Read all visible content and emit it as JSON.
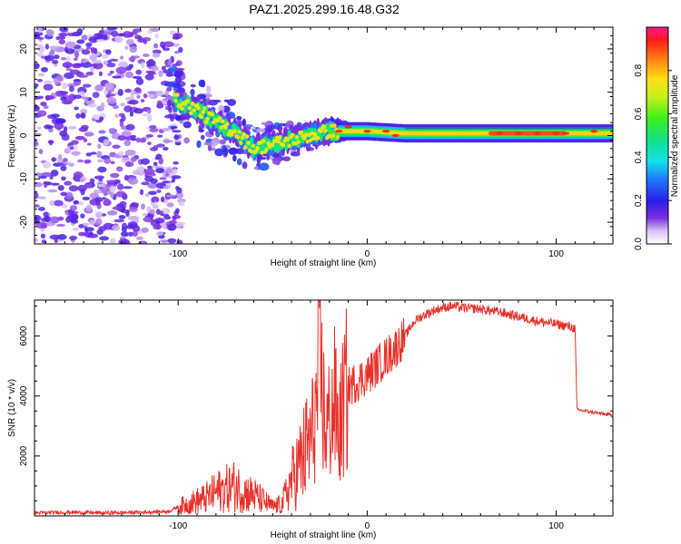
{
  "title": "PAZ1.2025.299.16.48.G32",
  "chart_data": [
    {
      "type": "heatmap",
      "panel": "spectrogram",
      "xlabel": "Height of straight line (km)",
      "ylabel": "Frequency (Hz)",
      "xlim": [
        -176,
        130
      ],
      "ylim": [
        -25,
        25
      ],
      "xticks": [
        -100,
        0,
        100
      ],
      "yticks": [
        -20,
        -10,
        0,
        10,
        20
      ],
      "colorbar": {
        "label": "Normalized spectral amplitude",
        "range": [
          0,
          1
        ],
        "ticks": [
          "0.0",
          "0.2",
          "0.4",
          "0.6",
          "0.8"
        ]
      },
      "ridge": [
        {
          "x": -100,
          "f": 8
        },
        {
          "x": -90,
          "f": 6
        },
        {
          "x": -80,
          "f": 3
        },
        {
          "x": -70,
          "f": 1
        },
        {
          "x": -60,
          "f": -3
        },
        {
          "x": -50,
          "f": -2
        },
        {
          "x": -40,
          "f": -1
        },
        {
          "x": -30,
          "f": 0
        },
        {
          "x": -20,
          "f": 1
        },
        {
          "x": -10,
          "f": 1
        },
        {
          "x": 0,
          "f": 1
        },
        {
          "x": 20,
          "f": 0.5
        },
        {
          "x": 60,
          "f": 0.5
        },
        {
          "x": 100,
          "f": 0.5
        },
        {
          "x": 130,
          "f": 0.5
        }
      ]
    },
    {
      "type": "line",
      "panel": "snr",
      "xlabel": "Height of straight line (km)",
      "ylabel": "SNR (10 * v/v)",
      "xlim": [
        -176,
        130
      ],
      "ylim": [
        0,
        7200
      ],
      "xticks": [
        -100,
        0,
        100
      ],
      "yticks": [
        2000,
        4000,
        6000
      ],
      "series": [
        {
          "name": "SNR",
          "color": "#e8302a",
          "x": [
            -176,
            -160,
            -140,
            -120,
            -105,
            -100,
            -95,
            -90,
            -85,
            -80,
            -75,
            -70,
            -65,
            -60,
            -55,
            -50,
            -45,
            -40,
            -35,
            -30,
            -27,
            -25,
            -22,
            -20,
            -17,
            -15,
            -12,
            -10,
            -5,
            0,
            5,
            10,
            15,
            20,
            25,
            30,
            35,
            40,
            45,
            50,
            60,
            70,
            80,
            90,
            100,
            108,
            110,
            111,
            115,
            120,
            125,
            130
          ],
          "y": [
            100,
            120,
            100,
            120,
            150,
            300,
            400,
            500,
            600,
            800,
            900,
            1000,
            800,
            700,
            500,
            300,
            400,
            1200,
            1800,
            2500,
            3500,
            5000,
            2800,
            3200,
            3800,
            2700,
            3900,
            4300,
            4500,
            4700,
            5000,
            5300,
            5600,
            6000,
            6500,
            6700,
            6850,
            6950,
            7000,
            6950,
            6900,
            6800,
            6650,
            6500,
            6400,
            6300,
            6250,
            3550,
            3500,
            3450,
            3400,
            3350
          ]
        }
      ]
    }
  ]
}
